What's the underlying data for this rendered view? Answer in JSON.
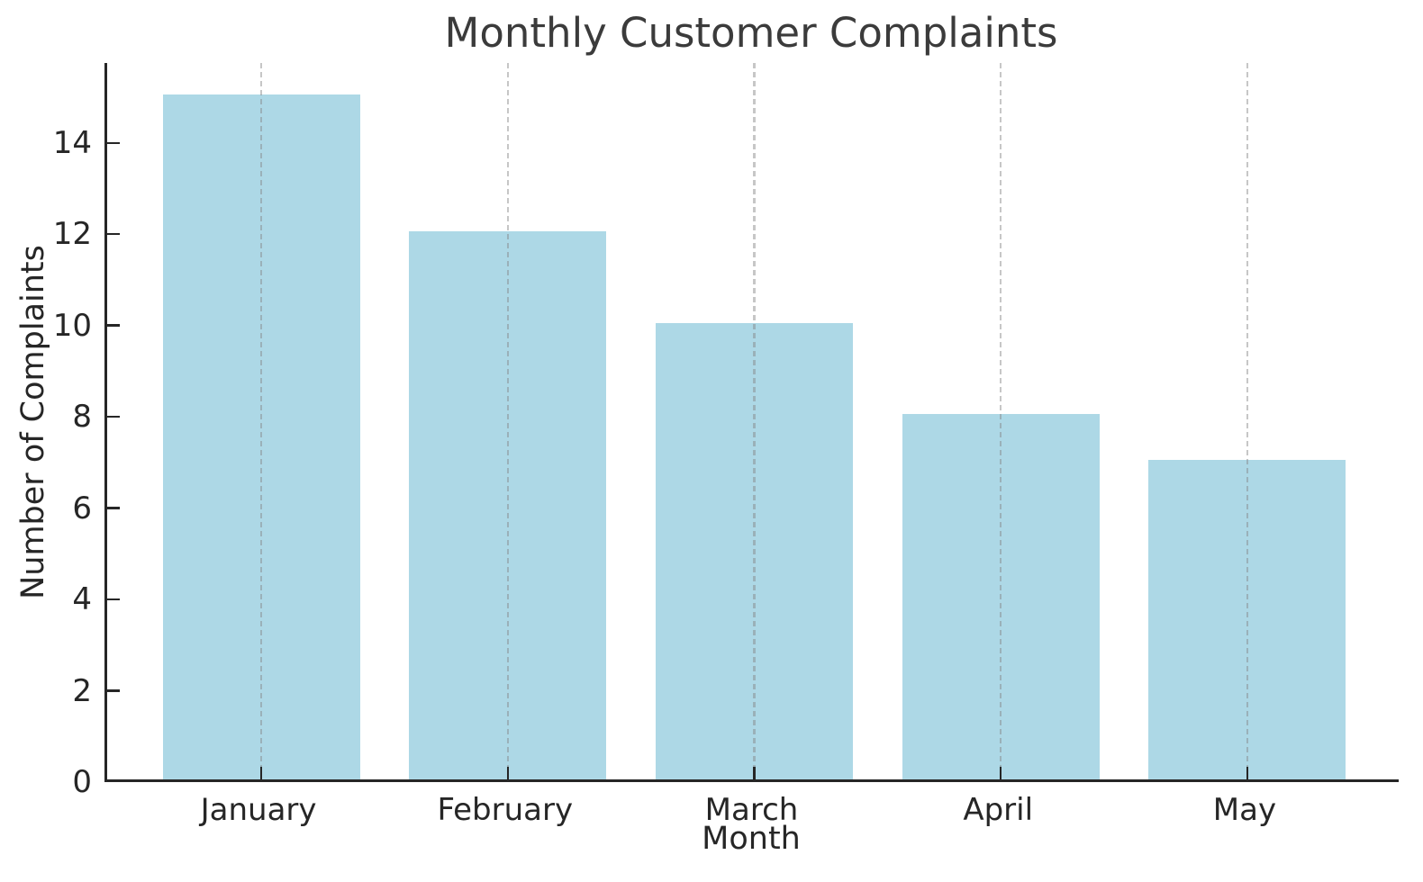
{
  "chart_data": {
    "type": "bar",
    "title": "Monthly Customer Complaints",
    "xlabel": "Month",
    "ylabel": "Number of Complaints",
    "categories": [
      "January",
      "February",
      "March",
      "April",
      "May"
    ],
    "values": [
      15,
      12,
      10,
      8,
      7
    ],
    "yticks": [
      0,
      2,
      4,
      6,
      8,
      10,
      12,
      14
    ],
    "ylim": [
      0,
      15.75
    ],
    "bar_color": "#ADD8E6",
    "gridline_style": "dashed vertical at each category center, drawn over bars",
    "gridline_color": "#cccccc",
    "axis_color": "#262626",
    "title_color": "#3b3b3b",
    "spines": "left and bottom only, ticks pointing inward",
    "legend": "none"
  }
}
